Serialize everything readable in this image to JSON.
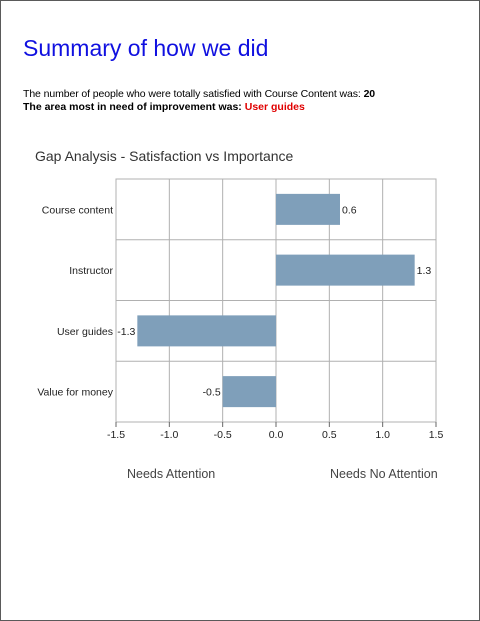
{
  "header": {
    "title": "Summary of how we did",
    "satisfied_text": "The number of people who were totally satisfied with Course Content was:",
    "satisfied_value": "20",
    "improvement_text": "The area most in need of improvement was:",
    "improvement_value": "User guides"
  },
  "colors": {
    "title": "#1010e0",
    "highlight": "#e00000",
    "bar": "#7f9fba",
    "grid": "#b0b0b0"
  },
  "chart_data": {
    "type": "bar",
    "orientation": "horizontal",
    "title": "Gap Analysis - Satisfaction vs Importance",
    "categories": [
      "Course content",
      "Instructor",
      "User guides",
      "Value for money"
    ],
    "values": [
      0.6,
      1.3,
      -1.3,
      -0.5
    ],
    "data_labels": [
      "0.6",
      "1.3",
      "-1.3",
      "-0.5"
    ],
    "xlim": [
      -1.5,
      1.5
    ],
    "x_ticks": [
      -1.5,
      -1.0,
      -0.5,
      0.0,
      0.5,
      1.0,
      1.5
    ],
    "x_tick_labels": [
      "-1.5",
      "-1.0",
      "-0.5",
      "0.0",
      "0.5",
      "1.0",
      "1.5"
    ],
    "grid": true,
    "legend": "none",
    "annotations": {
      "left": "Needs Attention",
      "right": "Needs No Attention"
    }
  }
}
